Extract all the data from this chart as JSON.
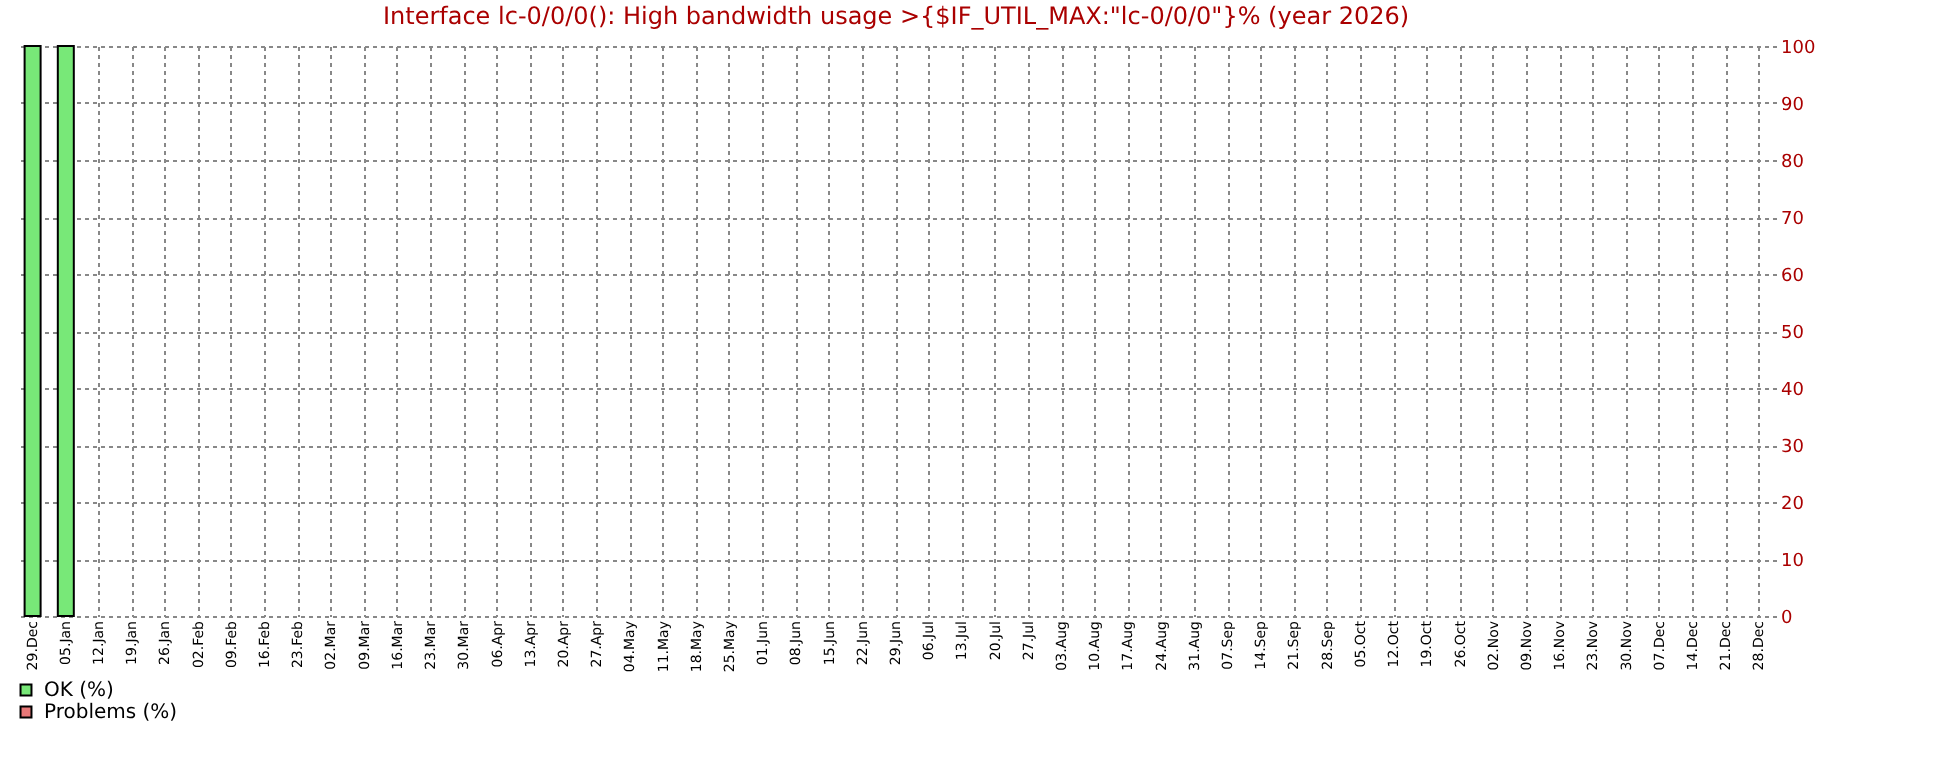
{
  "chart_data": {
    "type": "bar",
    "title": "Interface lc-0/0/0(): High bandwidth usage >{$IF_UTIL_MAX:\"lc-0/0/0\"}% (year 2026)",
    "categories": [
      "29.Dec",
      "05.Jan",
      "12.Jan",
      "19.Jan",
      "26.Jan",
      "02.Feb",
      "09.Feb",
      "16.Feb",
      "23.Feb",
      "02.Mar",
      "09.Mar",
      "16.Mar",
      "23.Mar",
      "30.Mar",
      "06.Apr",
      "13.Apr",
      "20.Apr",
      "27.Apr",
      "04.May",
      "11.May",
      "18.May",
      "25.May",
      "01.Jun",
      "08.Jun",
      "15.Jun",
      "22.Jun",
      "29.Jun",
      "06.Jul",
      "13.Jul",
      "20.Jul",
      "27.Jul",
      "03.Aug",
      "10.Aug",
      "17.Aug",
      "24.Aug",
      "31.Aug",
      "07.Sep",
      "14.Sep",
      "21.Sep",
      "28.Sep",
      "05.Oct",
      "12.Oct",
      "19.Oct",
      "26.Oct",
      "02.Nov",
      "09.Nov",
      "16.Nov",
      "23.Nov",
      "30.Nov",
      "07.Dec",
      "14.Dec",
      "21.Dec",
      "28.Dec"
    ],
    "series": [
      {
        "name": "OK (%)",
        "color": "#78e878",
        "values": [
          100,
          100,
          null,
          null,
          null,
          null,
          null,
          null,
          null,
          null,
          null,
          null,
          null,
          null,
          null,
          null,
          null,
          null,
          null,
          null,
          null,
          null,
          null,
          null,
          null,
          null,
          null,
          null,
          null,
          null,
          null,
          null,
          null,
          null,
          null,
          null,
          null,
          null,
          null,
          null,
          null,
          null,
          null,
          null,
          null,
          null,
          null,
          null,
          null,
          null,
          null,
          null,
          null
        ]
      },
      {
        "name": "Problems (%)",
        "color": "#e87878",
        "values": [
          null,
          null,
          null,
          null,
          null,
          null,
          null,
          null,
          null,
          null,
          null,
          null,
          null,
          null,
          null,
          null,
          null,
          null,
          null,
          null,
          null,
          null,
          null,
          null,
          null,
          null,
          null,
          null,
          null,
          null,
          null,
          null,
          null,
          null,
          null,
          null,
          null,
          null,
          null,
          null,
          null,
          null,
          null,
          null,
          null,
          null,
          null,
          null,
          null,
          null,
          null,
          null,
          null
        ]
      }
    ],
    "ylim": [
      0,
      100
    ],
    "yticks": [
      0,
      10,
      20,
      30,
      40,
      50,
      60,
      70,
      80,
      90,
      100
    ],
    "grid": true,
    "legend": "bottom left"
  }
}
